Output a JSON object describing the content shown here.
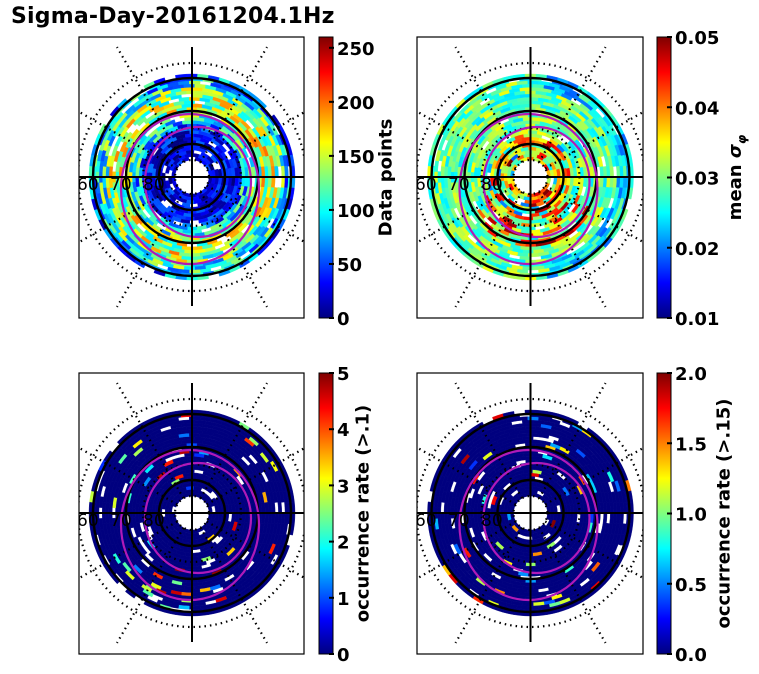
{
  "chart_data": {
    "title": "Sigma-Day-20161204.1Hz",
    "layout": "2x2 grid of polar (magnetic latitude / local time) dial plots, each with a jet colorbar on its right",
    "colormap": "jet",
    "colormap_stops": [
      "#00007f",
      "#0000ff",
      "#007fff",
      "#00ffff",
      "#7fff7f",
      "#ffff00",
      "#ff7f00",
      "#ff0000",
      "#7f0000"
    ],
    "grid": {
      "latitude_rings": [
        60,
        70,
        80
      ],
      "latitude_labels": [
        "60",
        "70",
        "80"
      ],
      "ring_style": "solid black circles at 60/70/80, dotted circles at 55/75/85",
      "radial_lines": "dotted, every 30 degrees",
      "crosshair": "solid black horizontal and vertical lines through the pole",
      "auroral_oval_boundaries": "two magenta ellipses offset toward the night side"
    },
    "panels": [
      {
        "id": "data-points",
        "type": "heatmap",
        "colorbar_label": "Data points",
        "colorbar_range": [
          0,
          260
        ],
        "colorbar_ticks": [
          "0",
          "50",
          "100",
          "150",
          "200",
          "250"
        ],
        "tick_values": [
          0,
          50,
          100,
          150,
          200,
          250
        ],
        "description": "counts mostly 20-180, highest (~220-260) near 65-70 MLAT on the day side and dusk/night flank",
        "background_level": 0.45
      },
      {
        "id": "mean-sigma-phi",
        "type": "heatmap",
        "colorbar_label": "mean σφ",
        "colorbar_label_main": "mean ",
        "colorbar_label_symbol": "σ",
        "colorbar_label_sub": "φ",
        "colorbar_range": [
          0.01,
          0.05
        ],
        "colorbar_ticks": [
          "0.01",
          "0.02",
          "0.03",
          "0.04",
          "0.05"
        ],
        "tick_values": [
          0.01,
          0.02,
          0.03,
          0.04,
          0.05
        ],
        "description": "mostly 0.025-0.032, peaks of 0.04-0.05 near the pole/cusp (>75 MLAT) and in the dusk-night sector",
        "background_level": 0.5
      },
      {
        "id": "occurrence-rate-0.1",
        "type": "heatmap",
        "colorbar_label": "occurrence rate (>.1)",
        "colorbar_range": [
          0,
          5
        ],
        "colorbar_ticks": [
          "0",
          "1",
          "2",
          "3",
          "4",
          "5"
        ],
        "tick_values": [
          0,
          1,
          2,
          3,
          4,
          5
        ],
        "description": "almost everywhere 0, isolated bins of 1-5 along the auroral oval",
        "background_level": 0.0
      },
      {
        "id": "occurrence-rate-0.15",
        "type": "heatmap",
        "colorbar_label": "occurrence rate (>.15)",
        "colorbar_range": [
          0.0,
          2.0
        ],
        "colorbar_ticks": [
          "0.0",
          "0.5",
          "1.0",
          "1.5",
          "2.0"
        ],
        "tick_values": [
          0.0,
          0.5,
          1.0,
          1.5,
          2.0
        ],
        "description": "almost everywhere 0, isolated bins of 0.5-2.0 along the auroral oval",
        "background_level": 0.0
      }
    ]
  }
}
